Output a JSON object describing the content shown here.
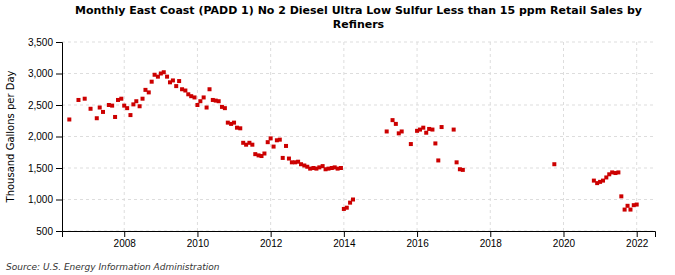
{
  "chart_data": {
    "type": "scatter",
    "title": "Monthly East Coast (PADD 1) No 2 Diesel Ultra Low Sulfur Less than 15 ppm Retail Sales by\nRefiners",
    "ylabel": "Thousand Gallons per Day",
    "source": "Source: U.S. Energy Information Administration",
    "color": "#cc0000",
    "marker": "square",
    "grid": true,
    "xlim": [
      2006.3,
      2022.5
    ],
    "xticks": [
      2008,
      2010,
      2012,
      2014,
      2016,
      2018,
      2020,
      2022
    ],
    "ylim": [
      500,
      3500
    ],
    "yticks": [
      500,
      {
        "value": 1000,
        "label": "1,000"
      },
      {
        "value": 1500,
        "label": "1,500"
      },
      {
        "value": 2000,
        "label": "2,000"
      },
      {
        "value": 2500,
        "label": "2,500"
      },
      {
        "value": 3000,
        "label": "3,000"
      },
      {
        "value": 3500,
        "label": "3,500"
      }
    ],
    "x": [
      2006.5,
      2006.75,
      2006.92,
      2007.08,
      2007.25,
      2007.33,
      2007.42,
      2007.58,
      2007.67,
      2007.75,
      2007.83,
      2007.92,
      2008.0,
      2008.08,
      2008.17,
      2008.25,
      2008.33,
      2008.42,
      2008.5,
      2008.58,
      2008.67,
      2008.75,
      2008.83,
      2008.92,
      2009.0,
      2009.08,
      2009.17,
      2009.25,
      2009.33,
      2009.42,
      2009.5,
      2009.58,
      2009.67,
      2009.75,
      2009.83,
      2009.92,
      2010.0,
      2010.08,
      2010.17,
      2010.25,
      2010.33,
      2010.42,
      2010.5,
      2010.58,
      2010.67,
      2010.75,
      2010.83,
      2010.92,
      2011.0,
      2011.08,
      2011.17,
      2011.25,
      2011.33,
      2011.42,
      2011.5,
      2011.58,
      2011.67,
      2011.75,
      2011.83,
      2011.92,
      2012.0,
      2012.08,
      2012.17,
      2012.25,
      2012.33,
      2012.42,
      2012.5,
      2012.58,
      2012.67,
      2012.75,
      2012.83,
      2012.92,
      2013.0,
      2013.08,
      2013.17,
      2013.25,
      2013.33,
      2013.42,
      2013.5,
      2013.58,
      2013.67,
      2013.75,
      2013.83,
      2013.92,
      2014.0,
      2014.08,
      2014.17,
      2014.25,
      2015.17,
      2015.33,
      2015.42,
      2015.5,
      2015.58,
      2015.83,
      2016.0,
      2016.08,
      2016.17,
      2016.25,
      2016.33,
      2016.42,
      2016.5,
      2016.58,
      2016.67,
      2017.0,
      2017.08,
      2017.17,
      2017.25,
      2019.75,
      2020.83,
      2020.92,
      2021.0,
      2021.08,
      2021.17,
      2021.25,
      2021.33,
      2021.42,
      2021.5,
      2021.58,
      2021.67,
      2021.75,
      2021.83,
      2021.92,
      2022.0
    ],
    "values": [
      2270,
      2580,
      2600,
      2440,
      2290,
      2460,
      2390,
      2500,
      2490,
      2310,
      2580,
      2600,
      2490,
      2450,
      2340,
      2510,
      2560,
      2480,
      2600,
      2740,
      2700,
      2870,
      2980,
      2950,
      3000,
      3020,
      2950,
      2860,
      2890,
      2800,
      2880,
      2750,
      2730,
      2670,
      2640,
      2620,
      2500,
      2560,
      2620,
      2460,
      2750,
      2580,
      2570,
      2560,
      2470,
      2450,
      2220,
      2200,
      2220,
      2140,
      2130,
      1900,
      1870,
      1900,
      1870,
      1720,
      1700,
      1690,
      1730,
      1910,
      1970,
      1840,
      1940,
      1950,
      1660,
      1850,
      1650,
      1590,
      1590,
      1600,
      1560,
      1540,
      1520,
      1490,
      1500,
      1490,
      1510,
      1530,
      1480,
      1490,
      1500,
      1510,
      1490,
      1500,
      850,
      870,
      950,
      1000,
      2080,
      2260,
      2200,
      2050,
      2080,
      1880,
      2090,
      2110,
      2140,
      2060,
      2120,
      2110,
      1890,
      1620,
      2150,
      2110,
      1590,
      1480,
      1470,
      1560,
      1300,
      1260,
      1280,
      1300,
      1350,
      1400,
      1430,
      1420,
      1430,
      1050,
      840,
      900,
      840,
      910,
      920
    ]
  }
}
